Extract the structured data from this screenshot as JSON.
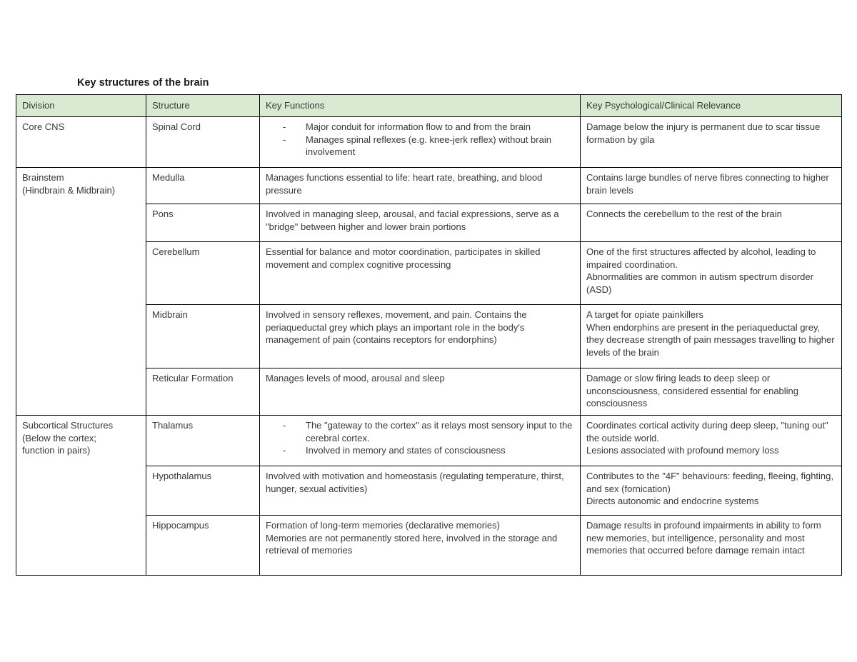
{
  "title": "Key structures of the brain",
  "table": {
    "columns": [
      {
        "key": "division",
        "label": "Division"
      },
      {
        "key": "structure",
        "label": "Structure"
      },
      {
        "key": "functions",
        "label": "Key Functions"
      },
      {
        "key": "relevance",
        "label": "Key Psychological/Clinical Relevance"
      }
    ],
    "groups": [
      {
        "division": "Core CNS",
        "rows": [
          {
            "structure": "Spinal Cord",
            "functions": [
              "Major conduit for information flow to and from the brain",
              "Manages spinal reflexes (e.g. knee-jerk reflex) without brain involvement"
            ],
            "relevance": "Damage below the injury is permanent due to scar tissue formation by gila"
          }
        ]
      },
      {
        "division": "Brainstem\n(Hindbrain & Midbrain)",
        "rows": [
          {
            "structure": "Medulla",
            "functions": "Manages functions essential to life: heart rate, breathing, and blood pressure",
            "relevance": "Contains large bundles of nerve fibres connecting to higher brain levels"
          },
          {
            "structure": "Pons",
            "functions": "Involved in managing sleep, arousal, and facial expressions, serve as a \"bridge\" between higher and lower brain portions",
            "relevance": "Connects the cerebellum to the rest of the brain"
          },
          {
            "structure": "Cerebellum",
            "functions": "Essential for balance and motor coordination, participates in skilled movement and complex cognitive processing",
            "relevance": "One of the first structures affected by alcohol, leading to impaired coordination.\nAbnormalities are common in autism spectrum disorder (ASD)"
          },
          {
            "structure": "Midbrain",
            "functions": "Involved in sensory reflexes, movement, and pain. Contains the periaqueductal grey which plays an important role in the body's management of pain (contains receptors for endorphins)",
            "relevance": "A target for opiate painkillers\nWhen endorphins are present in the periaqueductal grey, they decrease strength of pain messages travelling to higher levels of the brain"
          },
          {
            "structure": "Reticular Formation",
            "functions": "Manages levels of mood, arousal and sleep",
            "relevance": "Damage or slow firing leads to deep sleep or unconsciousness, considered essential for enabling consciousness"
          }
        ]
      },
      {
        "division": "Subcortical Structures\n(Below the cortex;\nfunction in pairs)",
        "rows": [
          {
            "structure": "Thalamus",
            "functions": [
              "The \"gateway to the cortex\" as it relays most sensory input to the cerebral cortex.",
              "Involved in memory and states of consciousness"
            ],
            "relevance": "Coordinates cortical activity during deep sleep, \"tuning out\" the outside world.\nLesions associated with profound memory loss"
          },
          {
            "structure": "Hypothalamus",
            "functions": "Involved with motivation and homeostasis (regulating temperature, thirst, hunger, sexual activities)",
            "relevance": "Contributes to the \"4F\" behaviours: feeding, fleeing, fighting, and sex (fornication)\nDirects autonomic and endocrine systems"
          },
          {
            "structure": "Hippocampus",
            "functions": "Formation of long-term memories (declarative memories)\nMemories are not permanently stored here, involved in the storage and retrieval of memories",
            "relevance": "Damage results in profound impairments in ability to form new memories, but intelligence, personality and most memories that occurred before damage remain intact"
          }
        ]
      }
    ]
  }
}
